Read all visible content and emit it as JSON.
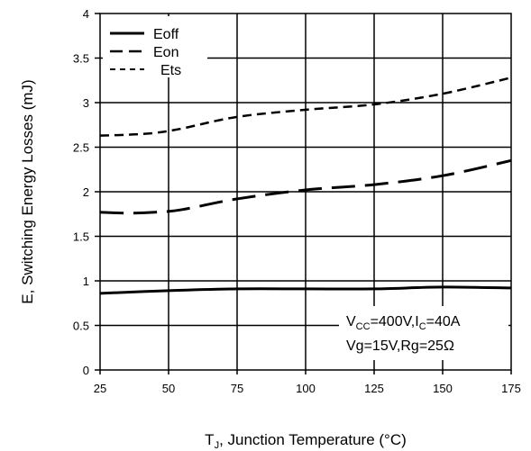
{
  "chart_data": {
    "type": "line",
    "title": "",
    "xlabel": "T_J, Junction Temperature (°C)",
    "xlabel_main": "T",
    "xlabel_sub": "J",
    "xlabel_rest": ", Junction Temperature (°C)",
    "ylabel": "E, Switching Energy Losses (mJ)",
    "xlim": [
      25,
      175
    ],
    "ylim": [
      0,
      4
    ],
    "x_ticks": [
      25,
      50,
      75,
      100,
      125,
      150,
      175
    ],
    "y_ticks": [
      0,
      0.5,
      1,
      1.5,
      2,
      2.5,
      3,
      3.5,
      4
    ],
    "y_tick_labels": [
      "0",
      "0.5",
      "1",
      "1.5",
      "2",
      "2.5",
      "3",
      "3.5",
      "4"
    ],
    "grid": true,
    "legend_position": "top-left",
    "series": [
      {
        "name": "Eoff",
        "style": "solid",
        "x": [
          25,
          50,
          75,
          100,
          125,
          150,
          175
        ],
        "y": [
          0.86,
          0.89,
          0.91,
          0.91,
          0.91,
          0.93,
          0.92
        ]
      },
      {
        "name": "Eon",
        "style": "long-dash",
        "x": [
          25,
          35,
          45,
          55,
          75,
          100,
          125,
          150,
          175
        ],
        "y": [
          1.77,
          1.76,
          1.77,
          1.8,
          1.92,
          2.02,
          2.08,
          2.18,
          2.35
        ]
      },
      {
        "name": "Ets",
        "style": "short-dash",
        "x": [
          25,
          35,
          45,
          55,
          75,
          100,
          125,
          150,
          175
        ],
        "y": [
          2.63,
          2.64,
          2.66,
          2.71,
          2.84,
          2.92,
          2.98,
          3.1,
          3.28
        ]
      }
    ],
    "annotation": {
      "line1": {
        "v": "V",
        "cc": "CC",
        "eq1": "=400V,I",
        "c": "C",
        "eq2": "=40A"
      },
      "line2": "Vg=15V,Rg=25Ω"
    }
  }
}
